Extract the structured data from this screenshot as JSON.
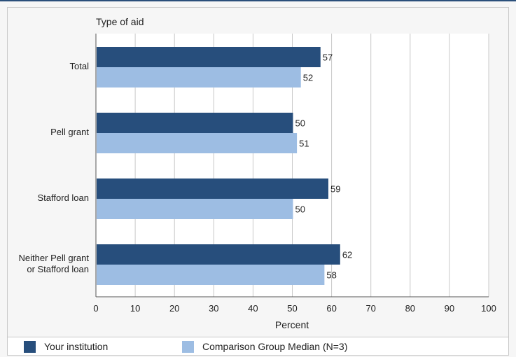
{
  "chart_data": {
    "type": "bar",
    "orientation": "horizontal",
    "title": "Type of aid",
    "xlabel": "Percent",
    "ylabel": "",
    "xlim": [
      0,
      100
    ],
    "xticks": [
      0,
      10,
      20,
      30,
      40,
      50,
      60,
      70,
      80,
      90,
      100
    ],
    "grid": true,
    "legend_position": "bottom",
    "categories": [
      [
        "Total"
      ],
      [
        "Pell grant"
      ],
      [
        "Stafford loan"
      ],
      [
        "Neither Pell grant",
        "or Stafford loan"
      ]
    ],
    "series": [
      {
        "name": "Your institution",
        "color": "#274e7c",
        "values": [
          57,
          50,
          59,
          62
        ]
      },
      {
        "name": "Comparison Group Median (N=3)",
        "color": "#9dbde3",
        "values": [
          52,
          51,
          50,
          58
        ]
      }
    ]
  },
  "legend": {
    "items": [
      {
        "label": "Your institution",
        "color": "#274e7c"
      },
      {
        "label": "Comparison Group Median (N=3)",
        "color": "#9dbde3"
      }
    ]
  }
}
